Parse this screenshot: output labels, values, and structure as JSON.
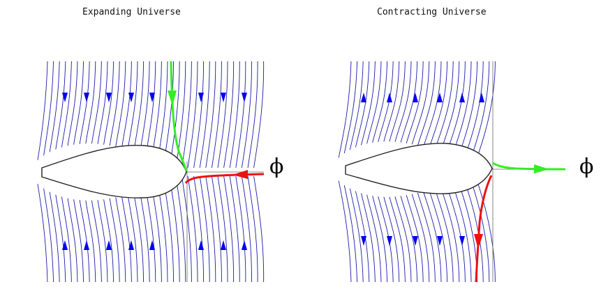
{
  "panels": [
    {
      "title": "Expanding Universe",
      "axis_label": "ϕ"
    },
    {
      "title": "Contracting Universe",
      "axis_label": "ϕ"
    }
  ],
  "colors": {
    "flow_lines": "#1a1aa8",
    "flow_arrows": "#0000ee",
    "green_trajectory": "#33ee22",
    "red_trajectory": "#ee1111",
    "boundary": "#222222",
    "axis": "#666666"
  },
  "icons": {
    "flow_arrow": "triangle-arrow",
    "axis_symbol": "phi"
  }
}
